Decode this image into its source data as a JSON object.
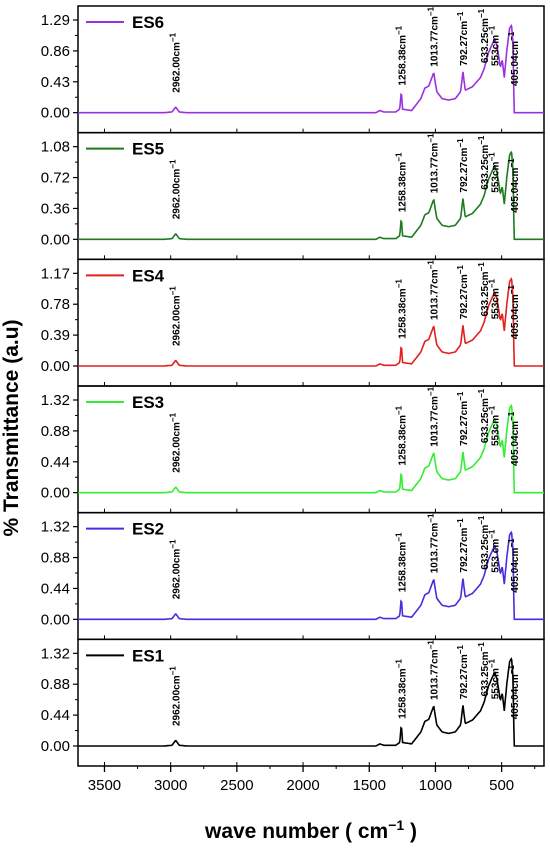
{
  "chart_data": {
    "type": "line",
    "ylabel": "% Transmittance (a.u)",
    "xlabel": "wave number ( cm",
    "xlabel_sup": "−1",
    "xlabel_end": " )",
    "xlim": [
      3700,
      180
    ],
    "x_ticks": [
      "3500",
      "3000",
      "2500",
      "2000",
      "1500",
      "1000",
      "500"
    ],
    "x_tick_values": [
      3500,
      3000,
      2500,
      2000,
      1500,
      1000,
      500
    ],
    "panels": [
      {
        "name": "ES6",
        "color": "#9B30E0",
        "ymax": 1.29,
        "y_ticks": [
          "0.00",
          "0.43",
          "0.86",
          "1.29"
        ],
        "peaks": [
          {
            "label": "2962.00cm",
            "wn": 2962,
            "sup": "−1"
          },
          {
            "label": "1258.38cm",
            "wn": 1258,
            "sup": "−1"
          },
          {
            "label": "1013.77cm",
            "wn": 1013,
            "sup": "−1"
          },
          {
            "label": "792.27cm",
            "wn": 792,
            "sup": "−1"
          },
          {
            "label": "633.25cm",
            "wn": 633,
            "sup": "−1"
          },
          {
            "label": "553cm",
            "wn": 553,
            "sup": "−1"
          },
          {
            "label": "405.04cm",
            "wn": 405,
            "sup": "−1"
          }
        ]
      },
      {
        "name": "ES5",
        "color": "#1E7A1E",
        "ymax": 1.08,
        "y_ticks": [
          "0.00",
          "0.36",
          "0.72",
          "1.08"
        ],
        "peaks": [
          {
            "label": "2962.00cm",
            "wn": 2962,
            "sup": "−1"
          },
          {
            "label": "1258.38cm",
            "wn": 1258,
            "sup": "−1"
          },
          {
            "label": "1013.77cm",
            "wn": 1013,
            "sup": "−1"
          },
          {
            "label": "792.27cm",
            "wn": 792,
            "sup": "−1"
          },
          {
            "label": "633.25cm",
            "wn": 633,
            "sup": "−1"
          },
          {
            "label": "553cm",
            "wn": 553,
            "sup": "−1"
          },
          {
            "label": "405.04cm",
            "wn": 405,
            "sup": "−1"
          }
        ]
      },
      {
        "name": "ES4",
        "color": "#E51E1E",
        "ymax": 1.17,
        "y_ticks": [
          "0.00",
          "0.39",
          "0.78",
          "1.17"
        ],
        "peaks": [
          {
            "label": "2962.00cm",
            "wn": 2962,
            "sup": "−1"
          },
          {
            "label": "1258.38cm",
            "wn": 1258,
            "sup": "−1"
          },
          {
            "label": "1013.77cm",
            "wn": 1013,
            "sup": "−1"
          },
          {
            "label": "792.27cm",
            "wn": 792,
            "sup": "−1"
          },
          {
            "label": "633.25cm",
            "wn": 633,
            "sup": "−1"
          },
          {
            "label": "553cm",
            "wn": 553,
            "sup": "−1"
          },
          {
            "label": "405.04cm",
            "wn": 405,
            "sup": "−1"
          }
        ]
      },
      {
        "name": "ES3",
        "color": "#33EE33",
        "ymax": 1.32,
        "y_ticks": [
          "0.00",
          "0.44",
          "0.88",
          "1.32"
        ],
        "peaks": [
          {
            "label": "2962.00cm",
            "wn": 2962,
            "sup": "−1"
          },
          {
            "label": "1258.38cm",
            "wn": 1258,
            "sup": "−1"
          },
          {
            "label": "1013.77cm",
            "wn": 1013,
            "sup": "−1"
          },
          {
            "label": "792.27cm",
            "wn": 792,
            "sup": "−1"
          },
          {
            "label": "633.25cm",
            "wn": 633,
            "sup": "−1"
          },
          {
            "label": "553cm",
            "wn": 553,
            "sup": "−1"
          },
          {
            "label": "405.04cm",
            "wn": 405,
            "sup": "−1"
          }
        ]
      },
      {
        "name": "ES2",
        "color": "#4A2BE0",
        "ymax": 1.32,
        "y_ticks": [
          "0.00",
          "0.44",
          "0.88",
          "1.32"
        ],
        "peaks": [
          {
            "label": "2962.00cm",
            "wn": 2962,
            "sup": "−1"
          },
          {
            "label": "1258.38cm",
            "wn": 1258,
            "sup": "−1"
          },
          {
            "label": "1013.77cm",
            "wn": 1013,
            "sup": "−1"
          },
          {
            "label": "792.27cm",
            "wn": 792,
            "sup": "−1"
          },
          {
            "label": "633.25cm",
            "wn": 633,
            "sup": "−1"
          },
          {
            "label": "553 cm",
            "wn": 553,
            "sup": "−1"
          },
          {
            "label": "405.04cm",
            "wn": 405,
            "sup": "−1"
          }
        ]
      },
      {
        "name": "ES1",
        "color": "#000000",
        "ymax": 1.32,
        "y_ticks": [
          "0.00",
          "0.44",
          "0.88",
          "1.32"
        ],
        "peaks": [
          {
            "label": "2962.00cm",
            "wn": 2962,
            "sup": "−1"
          },
          {
            "label": "1258.38cm",
            "wn": 1258,
            "sup": "−1"
          },
          {
            "label": "1013.77cm",
            "wn": 1013,
            "sup": "−1"
          },
          {
            "label": "792.27cm",
            "wn": 792,
            "sup": "−1"
          },
          {
            "label": "633.25cm",
            "wn": 633,
            "sup": "−1"
          },
          {
            "label": "553cm",
            "wn": 553,
            "sup": "−1"
          },
          {
            "label": "405.04cm",
            "wn": 405,
            "sup": "−1"
          }
        ]
      }
    ],
    "spectrum_shape": [
      [
        3700,
        0.0
      ],
      [
        3050,
        0.0
      ],
      [
        2990,
        0.01
      ],
      [
        2962,
        0.08
      ],
      [
        2935,
        0.01
      ],
      [
        2880,
        0.0
      ],
      [
        1450,
        0.0
      ],
      [
        1420,
        0.03
      ],
      [
        1390,
        0.01
      ],
      [
        1300,
        0.01
      ],
      [
        1270,
        0.05
      ],
      [
        1258,
        0.3
      ],
      [
        1248,
        0.05
      ],
      [
        1180,
        0.03
      ],
      [
        1110,
        0.2
      ],
      [
        1080,
        0.35
      ],
      [
        1050,
        0.38
      ],
      [
        1013,
        0.57
      ],
      [
        990,
        0.3
      ],
      [
        950,
        0.2
      ],
      [
        900,
        0.18
      ],
      [
        850,
        0.2
      ],
      [
        810,
        0.3
      ],
      [
        792,
        0.58
      ],
      [
        775,
        0.32
      ],
      [
        720,
        0.37
      ],
      [
        660,
        0.5
      ],
      [
        633,
        0.62
      ],
      [
        600,
        0.85
      ],
      [
        570,
        0.98
      ],
      [
        553,
        1.05
      ],
      [
        535,
        0.95
      ],
      [
        510,
        0.65
      ],
      [
        495,
        0.75
      ],
      [
        480,
        0.5
      ],
      [
        460,
        0.9
      ],
      [
        440,
        1.2
      ],
      [
        425,
        1.25
      ],
      [
        415,
        1.0
      ],
      [
        405,
        0.0
      ],
      [
        400,
        0.0
      ]
    ]
  }
}
